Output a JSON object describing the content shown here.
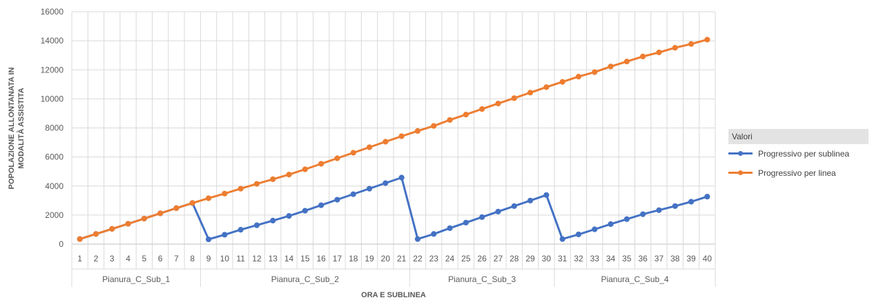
{
  "chart_data": {
    "type": "line",
    "title": "",
    "xlabel": "ORA E SUBLINEA",
    "ylabel_lines": [
      "POPOLAZIONE ALLONTANATA IN",
      "MODALITÀ ASSISTITA"
    ],
    "ylim": [
      0,
      16000
    ],
    "yticks": [
      0,
      2000,
      4000,
      6000,
      8000,
      10000,
      12000,
      14000,
      16000
    ],
    "grid": true,
    "legend_position": "right",
    "legend_title": "Valori",
    "categories": [
      "1",
      "2",
      "3",
      "4",
      "5",
      "6",
      "7",
      "8",
      "9",
      "10",
      "11",
      "12",
      "13",
      "14",
      "15",
      "16",
      "17",
      "18",
      "19",
      "20",
      "21",
      "22",
      "23",
      "24",
      "25",
      "26",
      "27",
      "28",
      "29",
      "30",
      "31",
      "32",
      "33",
      "34",
      "35",
      "36",
      "37",
      "38",
      "39",
      "40"
    ],
    "groups": [
      {
        "label": "Pianura_C_Sub_1",
        "count": 8
      },
      {
        "label": "Pianura_C_Sub_2",
        "count": 13
      },
      {
        "label": "Pianura_C_Sub_3",
        "count": 9
      },
      {
        "label": "Pianura_C_Sub_4",
        "count": 10
      }
    ],
    "series": [
      {
        "name": "Progressivo per sublinea",
        "color": "#4472c4",
        "values": [
          350,
          700,
          1050,
          1400,
          1760,
          2120,
          2480,
          2830,
          330,
          650,
          990,
          1300,
          1620,
          1940,
          2300,
          2680,
          3060,
          3440,
          3820,
          4200,
          4580,
          350,
          700,
          1100,
          1480,
          1860,
          2240,
          2620,
          3000,
          3380,
          350,
          670,
          1020,
          1380,
          1720,
          2060,
          2340,
          2620,
          2920,
          3270
        ]
      },
      {
        "name": "Progressivo per linea",
        "color": "#ed7d31",
        "values": [
          350,
          700,
          1050,
          1400,
          1760,
          2120,
          2480,
          2830,
          3160,
          3480,
          3820,
          4150,
          4470,
          4790,
          5150,
          5530,
          5910,
          6290,
          6670,
          7050,
          7430,
          7790,
          8140,
          8550,
          8920,
          9300,
          9680,
          10050,
          10430,
          10810,
          11170,
          11530,
          11840,
          12230,
          12570,
          12920,
          13200,
          13520,
          13780,
          14080
        ]
      }
    ]
  }
}
